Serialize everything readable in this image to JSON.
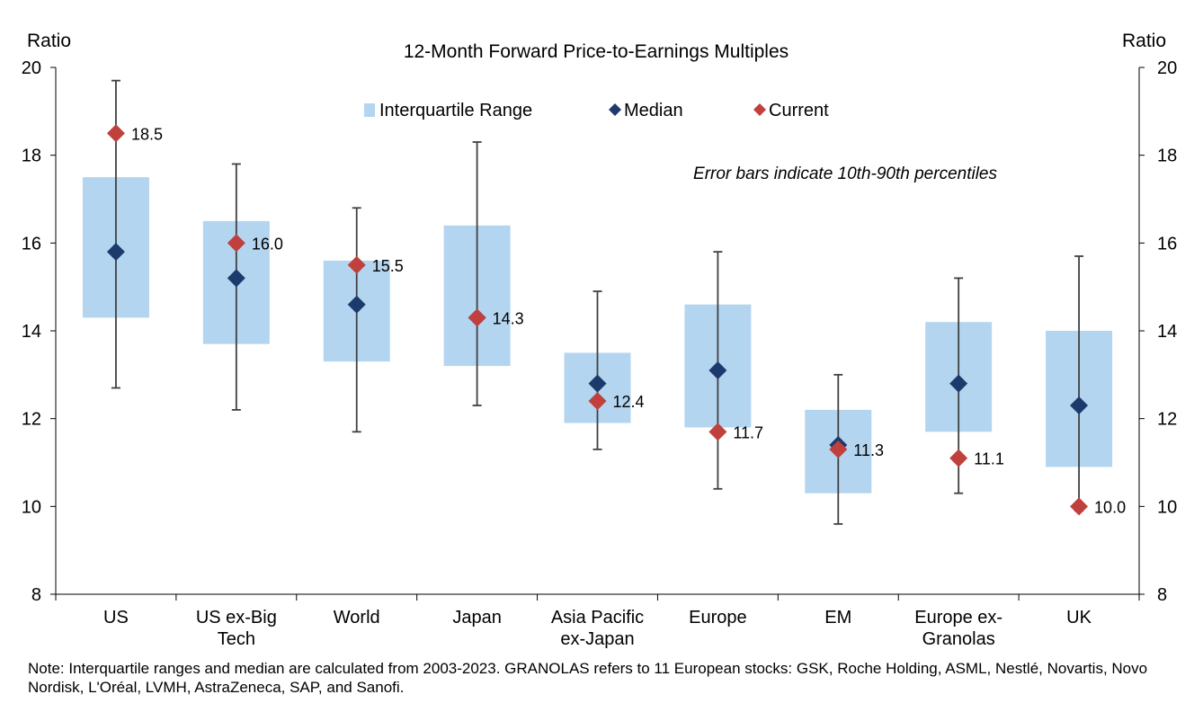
{
  "chart_data": {
    "type": "interquartile range chart with error bars",
    "title": "12-Month Forward Price-to-Earnings Multiples",
    "ylabel_left": "Ratio",
    "ylabel_right": "Ratio",
    "ylim": [
      8,
      20
    ],
    "yticks": [
      8,
      10,
      12,
      14,
      16,
      18,
      20
    ],
    "annotation": "Error bars indicate 10th-90th percentiles",
    "legend": {
      "position": "top-center",
      "items": [
        "Interquartile Range",
        "Median",
        "Current"
      ]
    },
    "colors": {
      "iqr": "#b4d5f0",
      "median": "#1c3a6b",
      "current": "#c0403d",
      "errorbar": "#404040",
      "axis": "#000000"
    },
    "categories": [
      [
        "US"
      ],
      [
        "US ex-Big",
        "Tech"
      ],
      [
        "World"
      ],
      [
        "Japan"
      ],
      [
        "Asia Pacific",
        "ex-Japan"
      ],
      [
        "Europe"
      ],
      [
        "EM"
      ],
      [
        "Europe ex-",
        "Granolas"
      ],
      [
        "UK"
      ]
    ],
    "series": [
      {
        "name": "Interquartile Range",
        "low": [
          14.3,
          13.7,
          13.3,
          13.2,
          11.9,
          11.8,
          10.3,
          11.7,
          10.9
        ],
        "high": [
          17.5,
          16.5,
          15.6,
          16.4,
          13.5,
          14.6,
          12.2,
          14.2,
          14.0
        ]
      },
      {
        "name": "Median",
        "values": [
          15.8,
          15.2,
          14.6,
          14.3,
          12.8,
          13.1,
          11.4,
          12.8,
          12.3
        ]
      },
      {
        "name": "Current",
        "values": [
          18.5,
          16.0,
          15.5,
          14.3,
          12.4,
          11.7,
          11.3,
          11.1,
          10.0
        ],
        "labels": [
          "18.5",
          "16.0",
          "15.5",
          "14.3",
          "12.4",
          "11.7",
          "11.3",
          "11.1",
          "10.0"
        ]
      }
    ],
    "percentile_10": [
      12.7,
      12.2,
      11.7,
      12.3,
      11.3,
      10.4,
      9.6,
      10.3,
      9.9
    ],
    "percentile_90": [
      19.7,
      17.8,
      16.8,
      18.3,
      14.9,
      15.8,
      13.0,
      15.2,
      15.7
    ]
  },
  "note": "Note: Interquartile ranges and median are calculated from 2003-2023. GRANOLAS refers to 11 European stocks: GSK, Roche Holding, ASML, Nestlé, Novartis, Novo Nordisk, L'Oréal, LVMH, AstraZeneca, SAP, and Sanofi."
}
